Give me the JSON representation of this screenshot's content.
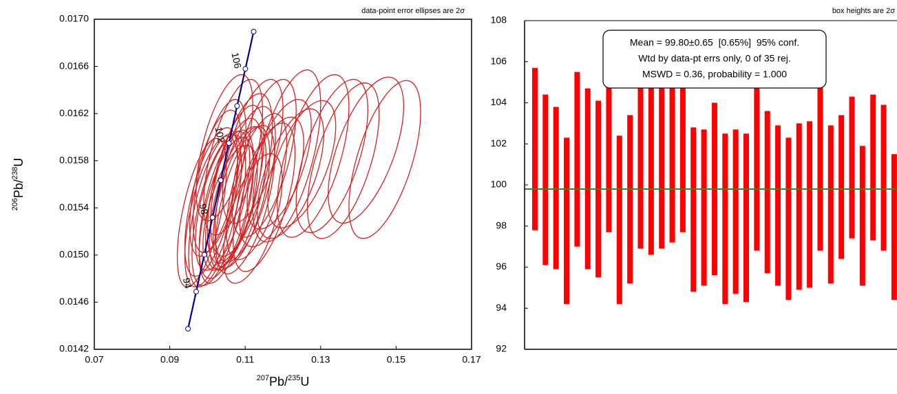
{
  "chart_data": [
    {
      "type": "concordia",
      "annotation": "data-point error ellipses are 2σ",
      "xlabel": [
        "207",
        "Pb/",
        "235",
        "U"
      ],
      "ylabel": [
        "206",
        "Pb/",
        "238",
        "U"
      ],
      "xlim": [
        0.07,
        0.17
      ],
      "xticks": [
        0.07,
        0.09,
        0.11,
        0.13,
        0.15,
        0.17
      ],
      "ylim": [
        0.0142,
        0.017
      ],
      "yticks": [
        0.0142,
        0.0146,
        {
          "value": 0.015,
          "label": "0.0150"
        },
        0.0154,
        0.0158,
        0.0162,
        0.0166,
        {
          "value": 0.017,
          "label": "0.0170"
        }
      ],
      "color": "#d42020",
      "concordia": {
        "color": "#00008b",
        "x": [
          0.09484,
          0.097,
          0.09916,
          0.10133,
          0.1035,
          0.10567,
          0.10785,
          0.11004,
          0.11223
        ],
        "y": [
          0.014374,
          0.014689,
          0.015003,
          0.015318,
          0.015634,
          0.015949,
          0.016264,
          0.016579,
          0.016895
        ],
        "ages": [
          null,
          94,
          null,
          98,
          null,
          102,
          null,
          106,
          null
        ]
      },
      "ellipses": {
        "x": [
          0.1045,
          0.1032,
          0.1021,
          0.0985,
          0.1068,
          0.109,
          0.1075,
          0.112,
          0.101,
          0.107,
          0.115,
          0.121,
          0.128,
          0.133,
          0.142,
          0.101,
          0.104,
          0.11,
          0.102,
          0.105,
          0.103,
          0.136,
          0.113,
          0.108,
          0.105,
          0.11,
          0.115,
          0.147,
          0.109,
          0.117,
          0.125,
          0.106,
          0.119,
          0.122,
          0.112
        ],
        "y": [
          0.01591,
          0.01567,
          0.01561,
          0.01536,
          0.01583,
          0.01568,
          0.0156,
          0.01588,
          0.01537,
          0.01552,
          0.01582,
          0.01584,
          0.01584,
          0.01584,
          0.01589,
          0.01545,
          0.01546,
          0.0156,
          0.01538,
          0.01543,
          0.01538,
          0.0158,
          0.01558,
          0.01548,
          0.01538,
          0.01547,
          0.01549,
          0.01581,
          0.01549,
          0.01562,
          0.01577,
          0.0154,
          0.01577,
          0.01569,
          0.01531
        ],
        "sx": [
          0.0075,
          0.007,
          0.0068,
          0.0065,
          0.0078,
          0.0082,
          0.0075,
          0.008,
          0.007,
          0.0075,
          0.0085,
          0.009,
          0.0095,
          0.0095,
          0.01,
          0.007,
          0.0072,
          0.008,
          0.007,
          0.0072,
          0.0071,
          0.0095,
          0.008,
          0.0075,
          0.0072,
          0.0078,
          0.0082,
          0.0095,
          0.0075,
          0.0085,
          0.009,
          0.0072,
          0.0085,
          0.0088,
          0.0078
        ],
        "sy": [
          0.00062,
          0.00065,
          0.00062,
          0.00063,
          0.00066,
          0.00069,
          0.00067,
          0.00061,
          0.00064,
          0.00064,
          0.00067,
          0.00073,
          0.00069,
          0.00065,
          0.00062,
          0.00063,
          0.00059,
          0.00066,
          0.00065,
          0.00063,
          0.00064,
          0.00066,
          0.00062,
          0.00061,
          0.00062,
          0.00063,
          0.00063,
          0.00067,
          0.0006,
          0.00055,
          0.00054,
          0.00053,
          0.00055,
          0.00055,
          0.00055
        ],
        "rho": [
          0.6,
          0.6,
          0.6,
          0.6,
          0.6,
          0.6,
          0.6,
          0.6,
          0.6,
          0.6,
          0.6,
          0.6,
          0.6,
          0.6,
          0.6,
          0.6,
          0.6,
          0.6,
          0.6,
          0.6,
          0.6,
          0.6,
          0.6,
          0.6,
          0.6,
          0.6,
          0.6,
          0.6,
          0.6,
          0.6,
          0.6,
          0.6,
          0.6,
          0.6,
          0.6
        ]
      }
    },
    {
      "type": "weighted_mean",
      "annotation": "box heights are 2σ",
      "ylim": [
        92,
        108
      ],
      "yticks": [
        92,
        94,
        96,
        98,
        100,
        102,
        104,
        106,
        108
      ],
      "color": "#ff0000",
      "values": [
        101.75,
        100.25,
        99.85,
        98.25,
        101.25,
        100.3,
        99.8,
        101.6,
        98.3,
        99.3,
        101.2,
        101.3,
        101.3,
        101.35,
        101.65,
        98.8,
        98.9,
        99.8,
        98.35,
        98.7,
        98.4,
        101.05,
        99.65,
        99.0,
        98.35,
        98.95,
        99.05,
        101.1,
        99.05,
        99.9,
        100.85,
        98.5,
        100.85,
        100.35,
        97.95
      ],
      "errors": [
        3.95,
        4.15,
        3.95,
        4.05,
        4.25,
        4.4,
        4.3,
        3.9,
        4.1,
        4.1,
        4.3,
        4.7,
        4.4,
        4.15,
        3.95,
        4.0,
        3.8,
        4.2,
        4.15,
        4.0,
        4.1,
        4.25,
        3.95,
        3.9,
        3.95,
        4.05,
        4.05,
        4.3,
        3.85,
        3.5,
        3.45,
        3.4,
        3.55,
        3.55,
        3.55
      ],
      "mean": 99.8,
      "mean_color": "#2e8b22",
      "stats": [
        "Mean = 99.80±0.65  [0.65%]  95% conf.",
        "Wtd by data-pt errs only, 0 of 35 rej.",
        "MSWD = 0.36, probability = 1.000"
      ]
    }
  ]
}
